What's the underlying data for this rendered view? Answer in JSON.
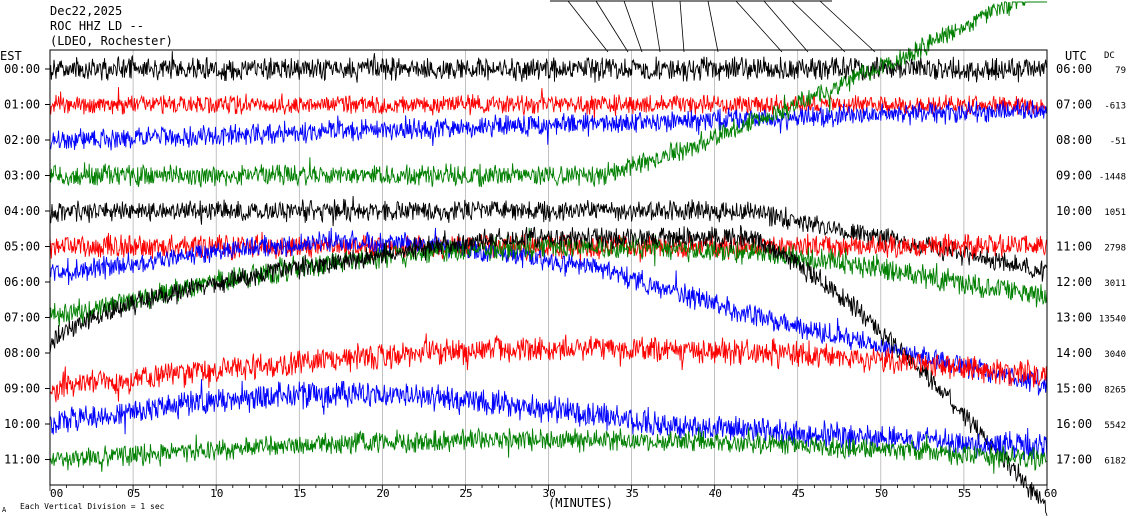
{
  "header": {
    "date": "Dec22,2025",
    "station": "ROC HHZ LD --",
    "network": "(LDEO, Rochester)"
  },
  "axes": {
    "left_label": "EST",
    "right_label": "UTC",
    "dc_label": "DC",
    "xlabel": "(MINUTES)",
    "footer": "Each Vertical Division = 1 sec",
    "corner_mark": "A"
  },
  "chart_data": {
    "type": "line",
    "title": "",
    "xlabel": "(MINUTES)",
    "x_ticks": [
      0,
      5,
      10,
      15,
      20,
      25,
      30,
      35,
      40,
      45,
      50,
      55,
      60
    ],
    "x_tick_labels": [
      "00",
      "05",
      "10",
      "15",
      "20",
      "25",
      "30",
      "35",
      "40",
      "45",
      "50",
      "55",
      "60"
    ],
    "xlim": [
      0,
      60
    ],
    "rows": [
      {
        "est": "00:00",
        "utc": "06:00",
        "dc": "79",
        "color": "#000000"
      },
      {
        "est": "01:00",
        "utc": "07:00",
        "dc": "-613",
        "color": "#ff0000"
      },
      {
        "est": "02:00",
        "utc": "08:00",
        "dc": "-51",
        "color": "#0000ff"
      },
      {
        "est": "03:00",
        "utc": "09:00",
        "dc": "-1448",
        "color": "#008000"
      },
      {
        "est": "04:00",
        "utc": "10:00",
        "dc": "1051",
        "color": "#000000"
      },
      {
        "est": "05:00",
        "utc": "11:00",
        "dc": "2798",
        "color": "#ff0000"
      },
      {
        "est": "06:00",
        "utc": "12:00",
        "dc": "3011",
        "color": "#0000ff"
      },
      {
        "est": "07:00",
        "utc": "13:00",
        "dc": "13540",
        "color": "#008000"
      },
      {
        "est": "08:00",
        "utc": "14:00",
        "dc": "3040",
        "color": "#000000"
      },
      {
        "est": "09:00",
        "utc": "15:00",
        "dc": "8265",
        "color": "#ff0000"
      },
      {
        "est": "10:00",
        "utc": "16:00",
        "dc": "5542",
        "color": "#0000ff"
      },
      {
        "est": "11:00",
        "utc": "17:00",
        "dc": "6182",
        "color": "#008000"
      }
    ],
    "grid": true,
    "colors": [
      "#000000",
      "#ff0000",
      "#0000ff",
      "#008000"
    ]
  }
}
